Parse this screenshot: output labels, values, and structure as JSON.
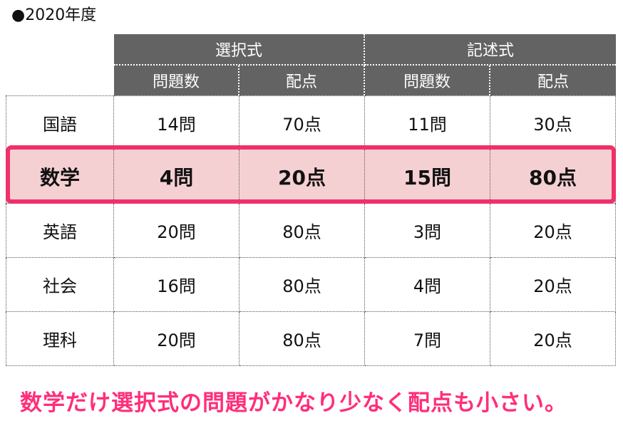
{
  "title": "●2020年度",
  "table": {
    "group_headers": [
      "選択式",
      "記述式"
    ],
    "sub_headers": [
      "問題数",
      "配点",
      "問題数",
      "配点"
    ],
    "rows": [
      {
        "subject": "国語",
        "cells": [
          "14問",
          "70点",
          "11問",
          "30点"
        ],
        "highlight": false
      },
      {
        "subject": "数学",
        "cells": [
          "4問",
          "20点",
          "15問",
          "80点"
        ],
        "highlight": true
      },
      {
        "subject": "英語",
        "cells": [
          "20問",
          "80点",
          "3問",
          "20点"
        ],
        "highlight": false
      },
      {
        "subject": "社会",
        "cells": [
          "16問",
          "80点",
          "4問",
          "20点"
        ],
        "highlight": false
      },
      {
        "subject": "理科",
        "cells": [
          "20問",
          "80点",
          "7問",
          "20点"
        ],
        "highlight": false
      }
    ]
  },
  "caption": "数学だけ選択式の問題がかなり少なく配点も小さい。",
  "colors": {
    "header_bg": "#636363",
    "highlight_bg": "#f5d0d3",
    "highlight_border": "#f0306a",
    "caption": "#ff2e7a"
  }
}
